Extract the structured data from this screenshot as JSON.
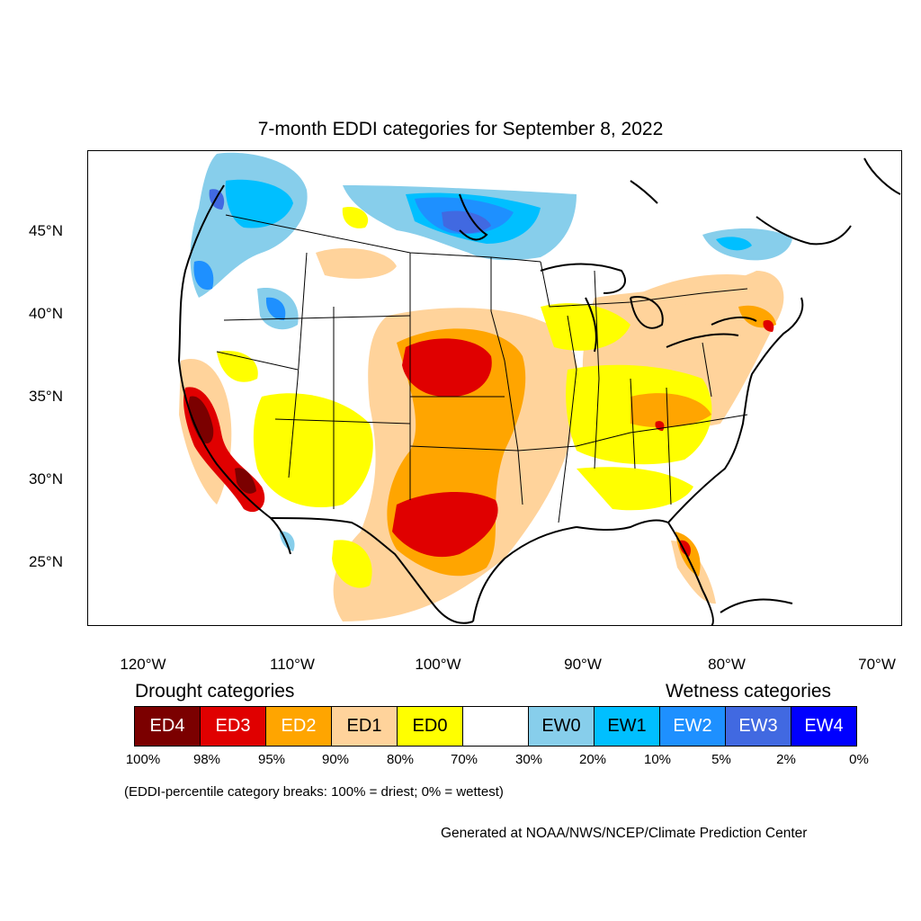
{
  "title": "7-month EDDI categories for September 8, 2022",
  "lat_labels": [
    "45°N",
    "40°N",
    "35°N",
    "30°N",
    "25°N"
  ],
  "lon_labels": [
    "120°W",
    "110°W",
    "100°W",
    "90°W",
    "80°W",
    "70°W"
  ],
  "legend": {
    "drought_heading": "Drought categories",
    "wetness_heading": "Wetness categories",
    "categories": [
      {
        "label": "ED4",
        "color": "#7b0000",
        "text_color": "#ffffff"
      },
      {
        "label": "ED3",
        "color": "#e00000",
        "text_color": "#ffffff"
      },
      {
        "label": "ED2",
        "color": "#ffa500",
        "text_color": "#ffffff"
      },
      {
        "label": "ED1",
        "color": "#ffd39b",
        "text_color": "#000000"
      },
      {
        "label": "ED0",
        "color": "#ffff00",
        "text_color": "#000000"
      },
      {
        "label": "",
        "color": "#ffffff",
        "text_color": "#000000"
      },
      {
        "label": "EW0",
        "color": "#87ceeb",
        "text_color": "#000000"
      },
      {
        "label": "EW1",
        "color": "#00bfff",
        "text_color": "#000000"
      },
      {
        "label": "EW2",
        "color": "#1e90ff",
        "text_color": "#ffffff"
      },
      {
        "label": "EW3",
        "color": "#4169e1",
        "text_color": "#ffffff"
      },
      {
        "label": "EW4",
        "color": "#0000ff",
        "text_color": "#ffffff"
      }
    ],
    "percentiles": [
      "100%",
      "98%",
      "95%",
      "90%",
      "80%",
      "70%",
      "30%",
      "20%",
      "10%",
      "5%",
      "2%",
      "0%"
    ]
  },
  "note": "(EDDI-percentile category breaks: 100% = driest; 0% = wettest)",
  "credit": "Generated at NOAA/NWS/NCEP/Climate Prediction Center"
}
